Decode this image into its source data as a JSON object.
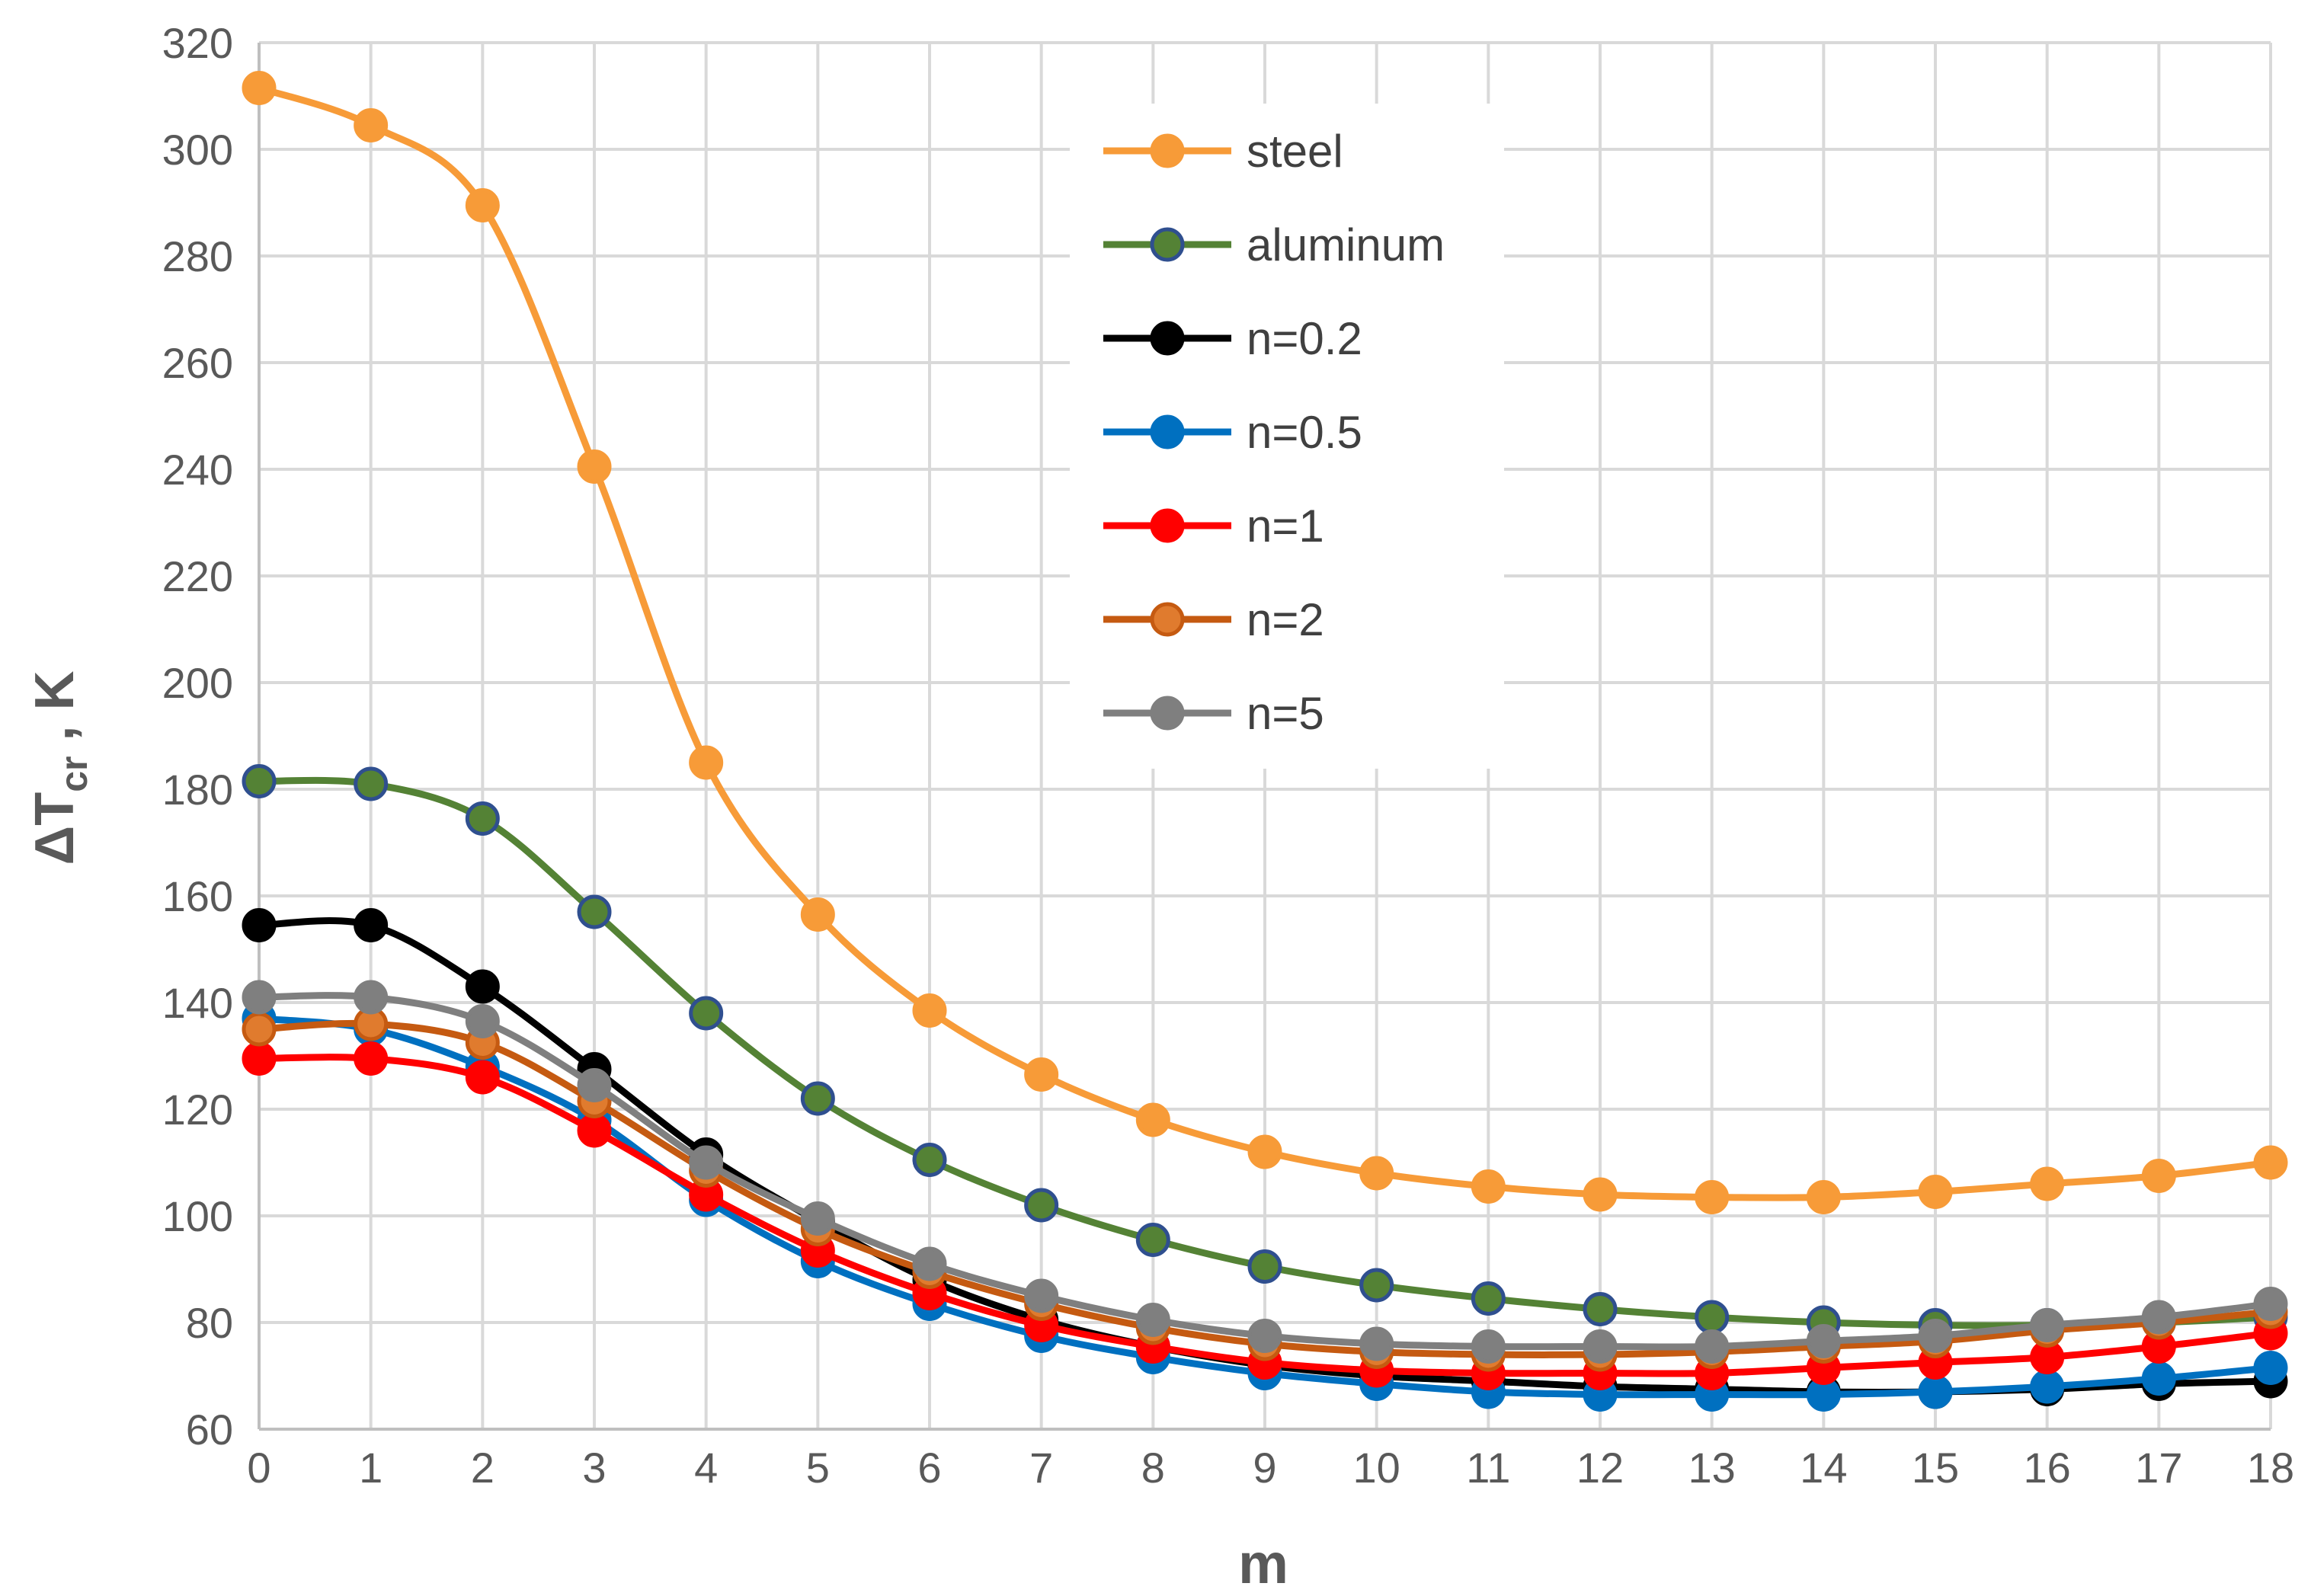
{
  "chart_data": {
    "type": "line",
    "title": "",
    "xlabel": "m",
    "ylabel_main": "ΔT",
    "ylabel_sub": "cr",
    "ylabel_tail": " , K",
    "x": [
      0,
      1,
      2,
      3,
      4,
      5,
      6,
      7,
      8,
      9,
      10,
      11,
      12,
      13,
      14,
      15,
      16,
      17,
      18
    ],
    "xlim": [
      0,
      18
    ],
    "ylim": [
      60,
      320
    ],
    "yticks": [
      60,
      80,
      100,
      120,
      140,
      160,
      180,
      200,
      220,
      240,
      260,
      280,
      300,
      320
    ],
    "grid": true,
    "legend_position": "top-center",
    "series": [
      {
        "name": "steel",
        "color": "#F79B38",
        "marker_edge": "#F79B38",
        "values": [
          311.5,
          304.5,
          289.5,
          240.5,
          185,
          156.5,
          138.5,
          126.5,
          118,
          112,
          108,
          105.5,
          104,
          103.5,
          103.5,
          104.5,
          106,
          107.5,
          110
        ]
      },
      {
        "name": "aluminum",
        "color": "#548235",
        "marker_fill": "#548235",
        "marker_edge": "#2F4F8F",
        "values": [
          181.5,
          181,
          174.5,
          157,
          138,
          122,
          110.5,
          102,
          95.5,
          90.5,
          87,
          84.5,
          82.5,
          81,
          80,
          79.5,
          79.5,
          80,
          81
        ]
      },
      {
        "name": "n=0.2",
        "color": "#000000",
        "marker_edge": "#000000",
        "values": [
          154.5,
          154.5,
          143,
          127.5,
          111.5,
          99,
          88,
          80.5,
          75.5,
          72,
          70,
          69,
          68,
          67.5,
          67,
          67,
          67.5,
          68.5,
          69
        ]
      },
      {
        "name": "n=0.5",
        "color": "#0070C0",
        "marker_edge": "#0070C0",
        "values": [
          137,
          135,
          128,
          118,
          103,
          91.5,
          83.5,
          77.5,
          73.5,
          70.5,
          68.5,
          67,
          66.5,
          66.5,
          66.5,
          67,
          68,
          69.5,
          71.5
        ]
      },
      {
        "name": "n=1",
        "color": "#FF0000",
        "marker_edge": "#FF0000",
        "values": [
          129.5,
          129.5,
          126,
          116,
          104,
          93.5,
          85.5,
          79.5,
          75.5,
          72.5,
          71,
          70.5,
          70.5,
          70.5,
          71.5,
          72.5,
          73.5,
          75.5,
          78
        ]
      },
      {
        "name": "n=2",
        "color": "#C55A11",
        "marker_fill": "#E07B2E",
        "marker_edge": "#C55A11",
        "values": [
          135,
          136,
          132.5,
          121.5,
          108.5,
          97.5,
          89.5,
          83.5,
          79,
          76,
          74.5,
          74,
          74,
          74.5,
          75.5,
          76.5,
          78.5,
          80,
          82
        ]
      },
      {
        "name": "n=5",
        "color": "#7F7F7F",
        "marker_edge": "#7F7F7F",
        "values": [
          141,
          141,
          136.5,
          124.5,
          110,
          99.5,
          91,
          85,
          80.5,
          77.5,
          76,
          75.5,
          75.5,
          75.5,
          76.5,
          77.5,
          79.5,
          81,
          83.5
        ]
      }
    ]
  }
}
